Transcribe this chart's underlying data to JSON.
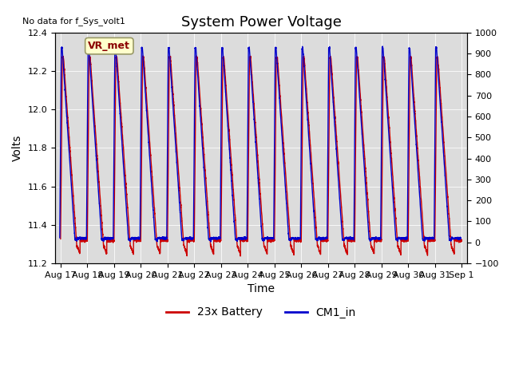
{
  "title": "System Power Voltage",
  "xlabel": "Time",
  "ylabel": "Volts",
  "ylim_left": [
    11.2,
    12.4
  ],
  "ylim_right": [
    -100,
    1000
  ],
  "yticks_left": [
    11.2,
    11.4,
    11.6,
    11.8,
    12.0,
    12.2,
    12.4
  ],
  "yticks_right": [
    -100,
    0,
    100,
    200,
    300,
    400,
    500,
    600,
    700,
    800,
    900,
    1000
  ],
  "num_cycles": 15,
  "red_peak": 12.27,
  "red_trough": 11.25,
  "red_flat": 11.32,
  "blue_peak": 12.32,
  "blue_trough": 11.32,
  "blue_flat": 11.33,
  "no_data_text": "No data for f_Sys_volt1",
  "vr_met_text": "VR_met",
  "legend_red": "23x Battery",
  "legend_blue": "CM1_in",
  "red_color": "#cc0000",
  "blue_color": "#0000cc",
  "bg_color": "#dcdcdc",
  "fig_bg": "#ffffff",
  "title_fontsize": 13,
  "label_fontsize": 10,
  "tick_fontsize": 8,
  "annotation_fontsize": 9,
  "x_tick_labels": [
    "Aug 17",
    "Aug 18",
    "Aug 19",
    "Aug 20",
    "Aug 21",
    "Aug 22",
    "Aug 23",
    "Aug 24",
    "Aug 25",
    "Aug 26",
    "Aug 27",
    "Aug 28",
    "Aug 29",
    "Aug 30",
    "Aug 31",
    "Sep 1"
  ],
  "x_tick_positions": [
    0,
    1,
    2,
    3,
    4,
    5,
    6,
    7,
    8,
    9,
    10,
    11,
    12,
    13,
    14,
    15
  ]
}
